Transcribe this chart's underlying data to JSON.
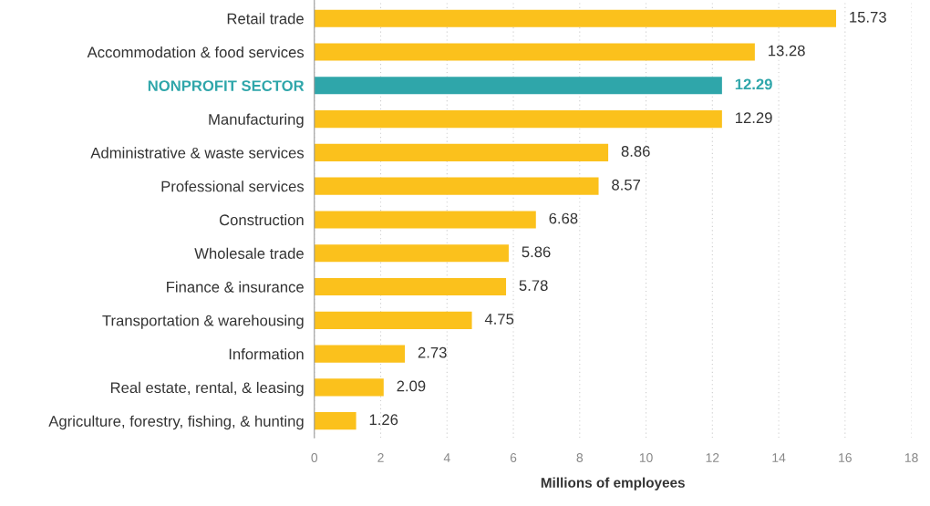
{
  "chart_data": {
    "type": "bar",
    "orientation": "horizontal",
    "xlabel": "Millions of employees",
    "categories": [
      "Retail trade",
      "Accommodation & food services",
      "NONPROFIT SECTOR",
      "Manufacturing",
      "Administrative & waste services",
      "Professional services",
      "Construction",
      "Wholesale trade",
      "Finance & insurance",
      "Transportation & warehousing",
      "Information",
      "Real estate, rental, & leasing",
      "Agriculture, forestry, fishing, & hunting"
    ],
    "values": [
      15.73,
      13.28,
      12.29,
      12.29,
      8.86,
      8.57,
      6.68,
      5.86,
      5.78,
      4.75,
      2.73,
      2.09,
      1.26
    ],
    "color": "#fbc11c",
    "colors": [
      "#fbc11c",
      "#fbc11c",
      "#2fa6aa",
      "#fbc11c",
      "#fbc11c",
      "#fbc11c",
      "#fbc11c",
      "#fbc11c",
      "#fbc11c",
      "#fbc11c",
      "#fbc11c",
      "#fbc11c",
      "#fbc11c"
    ],
    "xlim": [
      0,
      18
    ],
    "xticks": [
      0,
      2,
      4,
      6,
      8,
      10,
      12,
      14,
      16,
      18
    ],
    "data_labels": true,
    "grid": "x"
  }
}
